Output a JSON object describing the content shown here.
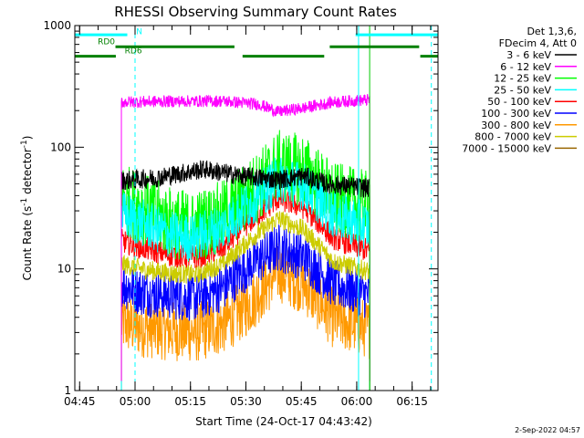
{
  "chart_data": {
    "type": "line",
    "title": "RHESSI Observing Summary Count Rates",
    "xlabel": "Start Time (24-Oct-17 04:43:42)",
    "ylabel_main": "Count Rate (s",
    "ylabel_sup1": "-1",
    "ylabel_mid": " detector",
    "ylabel_sup2": "-1",
    "ylabel_end": ")",
    "y_scale": "log",
    "ylim": [
      1,
      1000
    ],
    "xlim_minutes": [
      0,
      98.3
    ],
    "x_start_time": "04:43:42",
    "x_ticks": [
      {
        "label": "04:45",
        "minute": 1.3
      },
      {
        "label": "05:00",
        "minute": 16.3
      },
      {
        "label": "05:15",
        "minute": 31.3
      },
      {
        "label": "05:30",
        "minute": 46.3
      },
      {
        "label": "05:45",
        "minute": 61.3
      },
      {
        "label": "06:00",
        "minute": 76.3
      },
      {
        "label": "06:15",
        "minute": 91.3
      }
    ],
    "y_ticks": [
      {
        "label": "1",
        "value": 1
      },
      {
        "label": "10",
        "value": 10
      },
      {
        "label": "100",
        "value": 100
      },
      {
        "label": "1000",
        "value": 1000
      }
    ],
    "legend_header": [
      "Det 1,3,6,",
      "FDecim 4, Att 0"
    ],
    "legend_placement": "right",
    "data_window_minutes": [
      12.6,
      79.8
    ],
    "series": [
      {
        "name": "3 - 6 keV",
        "color": "#000000",
        "knots_min": [
          12.6,
          22,
          35,
          45,
          55,
          62,
          68,
          79.8
        ],
        "knots_val": [
          53,
          56,
          66,
          58,
          54,
          58,
          50,
          46
        ],
        "jitter": 0.08,
        "end_drop_to": 1.2
      },
      {
        "name": "6 - 12 keV",
        "color": "#ff00ff",
        "knots_min": [
          12.6,
          25,
          40,
          50,
          55,
          62,
          70,
          79.8
        ],
        "knots_val": [
          235,
          238,
          240,
          225,
          195,
          210,
          235,
          245
        ],
        "jitter": 0.05,
        "end_drop_to": 1.2
      },
      {
        "name": "12 - 25 keV",
        "color": "#00ff00",
        "knots_min": [
          12.6,
          18,
          26,
          32,
          40,
          47,
          55,
          62,
          70,
          79.8
        ],
        "knots_val": [
          38,
          32,
          24,
          22,
          27,
          40,
          70,
          65,
          38,
          32
        ],
        "jitter": 0.3,
        "end_drop_to": 1.0
      },
      {
        "name": "25 - 50 keV",
        "color": "#00ffff",
        "knots_min": [
          12.6,
          18,
          26,
          32,
          40,
          47,
          55,
          62,
          70,
          79.8
        ],
        "knots_val": [
          28,
          24,
          19,
          18,
          22,
          34,
          55,
          48,
          28,
          22
        ],
        "jitter": 0.2,
        "end_drop_to": 1.0
      },
      {
        "name": "50 - 100 keV",
        "color": "#ff0000",
        "knots_min": [
          12.6,
          18,
          26,
          33,
          40,
          47,
          55,
          62,
          70,
          79.8
        ],
        "knots_val": [
          17,
          15,
          13,
          12.5,
          15,
          24,
          38,
          32,
          18,
          14
        ],
        "jitter": 0.1,
        "end_drop_to": 1.0
      },
      {
        "name": "100 - 300 keV",
        "color": "#0000ff",
        "knots_min": [
          12.6,
          18,
          26,
          33,
          40,
          47,
          55,
          62,
          70,
          79.8
        ],
        "knots_val": [
          7.5,
          6.5,
          6,
          5.8,
          7,
          10.5,
          15,
          12.5,
          7.5,
          6
        ],
        "jitter": 0.2,
        "end_drop_to": 1.0
      },
      {
        "name": "300 - 800 keV",
        "color": "#ff9900",
        "knots_min": [
          12.6,
          18,
          26,
          33,
          40,
          47,
          55,
          62,
          70,
          79.8
        ],
        "knots_val": [
          3.6,
          3.3,
          3.1,
          3,
          3.5,
          5,
          9.5,
          7.5,
          3.9,
          3.2
        ],
        "jitter": 0.25,
        "end_drop_to": 1.0
      },
      {
        "name": "800 - 7000 keV",
        "color": "#cccc00",
        "knots_min": [
          12.6,
          18,
          26,
          33,
          40,
          47,
          55,
          62,
          70,
          79.8
        ],
        "knots_val": [
          11,
          10,
          9.2,
          9,
          11,
          17,
          26,
          21,
          11.5,
          9.5
        ],
        "jitter": 0.08,
        "end_drop_to": 1.0
      },
      {
        "name": "7000 - 15000 keV",
        "color": "#996600",
        "knots_min": [],
        "knots_val": [],
        "jitter": 0,
        "end_drop_to": 1.0
      }
    ],
    "annotations": {
      "segment_labels": [
        {
          "text": "N",
          "minute": 16.6,
          "value": 850,
          "color": "#00ffff"
        },
        {
          "text": "RD0",
          "minute": 6.2,
          "value": 700,
          "color": "#008000"
        },
        {
          "text": "RD6",
          "minute": 13.5,
          "value": 590,
          "color": "#008000"
        }
      ],
      "cyan_bars": [
        {
          "from": 0,
          "to": 14.2,
          "value": 840
        },
        {
          "from": 76,
          "to": 98.3,
          "value": 840
        }
      ],
      "green_bars": [
        {
          "from": 11,
          "to": 43.2,
          "value": 670
        },
        {
          "from": 69,
          "to": 93.2,
          "value": 670
        },
        {
          "from": 0,
          "to": 11.1,
          "value": 560
        },
        {
          "from": 45.4,
          "to": 67.5,
          "value": 560
        },
        {
          "from": 93.5,
          "to": 98.3,
          "value": 560
        }
      ],
      "cyan_solid_lines": [
        0,
        76.8
      ],
      "cyan_dashed_lines": [
        16.3,
        96.5
      ],
      "green_solid_lines": [
        79.8
      ]
    },
    "footer_date": "2-Sep-2022 04:57"
  }
}
